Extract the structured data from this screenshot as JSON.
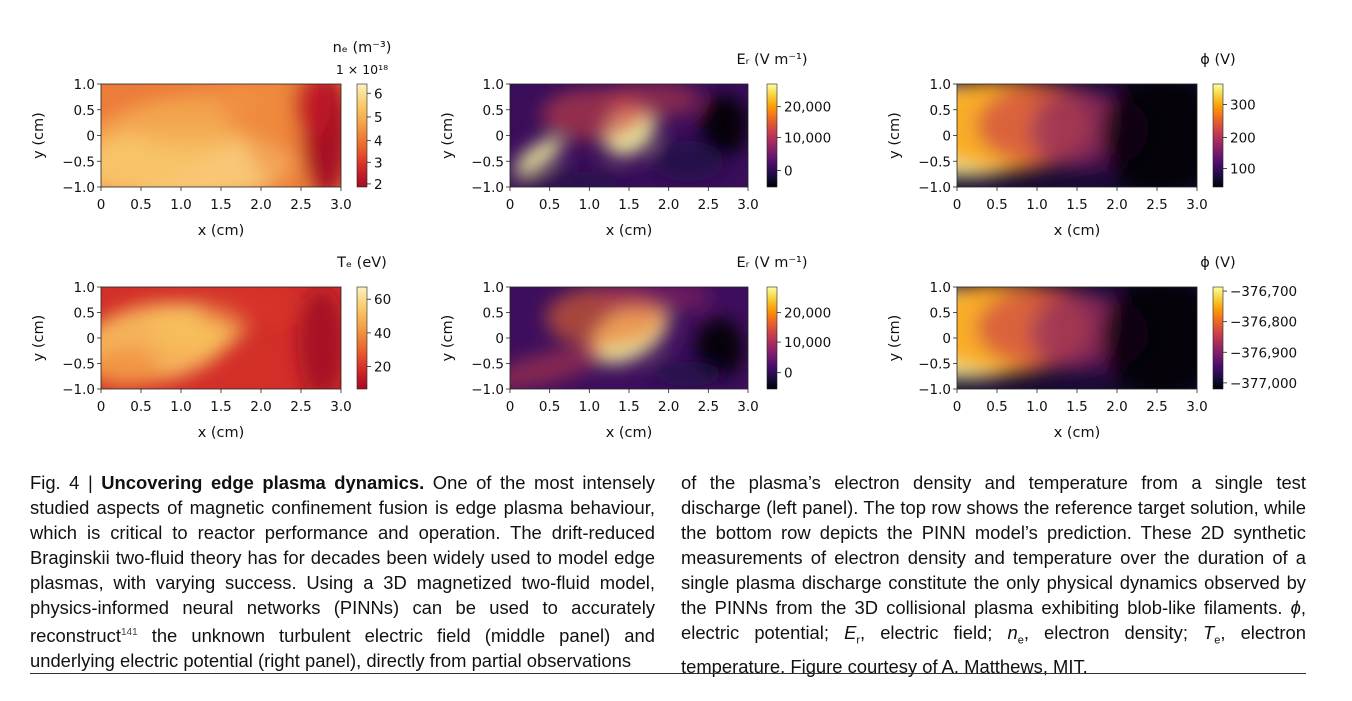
{
  "figure": {
    "x_ticks": [
      "0",
      "0.5",
      "1.0",
      "1.5",
      "2.0",
      "2.5",
      "3.0"
    ],
    "y_ticks": [
      "1.0",
      "0.5",
      "0",
      "−0.5",
      "−1.0"
    ],
    "x_label": "x (cm)",
    "y_label": "y (cm)",
    "panels": [
      {
        "id": "ne_target",
        "cmap": "lajolla",
        "field": "ne",
        "cb_title": "nₑ (m⁻³)",
        "cb_multiplier": "1 × 10¹⁸",
        "cb_ticks": [
          "6",
          "5",
          "4",
          "3",
          "2"
        ]
      },
      {
        "id": "Er_target",
        "cmap": "inferno",
        "field": "er1",
        "cb_title": "Eᵣ (V m⁻¹)",
        "cb_ticks": [
          "20,000",
          "10,000",
          "0"
        ]
      },
      {
        "id": "phi_target",
        "cmap": "inferno",
        "field": "phi",
        "cb_title": "ϕ (V)",
        "cb_ticks": [
          "300",
          "200",
          "100"
        ]
      },
      {
        "id": "Te_target",
        "cmap": "lajolla",
        "field": "te",
        "cb_title": "Tₑ (eV)",
        "cb_ticks": [
          "60",
          "40",
          "20"
        ]
      },
      {
        "id": "Er_pred",
        "cmap": "inferno",
        "field": "er2",
        "cb_title": "Eᵣ (V m⁻¹)",
        "cb_ticks": [
          "20,000",
          "10,000",
          "0"
        ]
      },
      {
        "id": "phi_pred",
        "cmap": "inferno",
        "field": "phi",
        "cb_title": "ϕ (V)",
        "cb_ticks": [
          "−376,700",
          "−376,800",
          "−376,900",
          "−377,000"
        ]
      }
    ]
  },
  "caption": {
    "fig_label": "Fig. 4 | ",
    "title": "Uncovering edge plasma dynamics.",
    "left_p1": " One of the most intensely studied aspects of magnetic confinement fusion is edge plasma behaviour, which is critical to reactor performance and operation. The drift-reduced Braginskii two-fluid theory has for decades been widely used to model edge plasmas, with varying success. Using a 3D magnetized two-fluid model, physics-informed neural networks (PINNs) can be used to accurately reconstruct",
    "ref": "141",
    "left_p2": " the unknown turbulent electric field (middle panel) and underlying electric potential (right panel), directly from partial observations",
    "right_p1": "of the plasma’s electron density and temperature from a single test discharge (left panel). The top row shows the reference target solution, while the bottom row depicts the PINN model’s prediction. These 2D synthetic measurements of electron density and temperature over the duration of a single plasma discharge constitute the only physical dynamics observed by the PINNs from the 3D collisional plasma exhibiting blob-like filaments. ",
    "phi": "ϕ",
    "t_phi": ", electric potential; ",
    "E": "E",
    "E_sub": "r",
    "t_E": ", electric field; ",
    "n": "n",
    "n_sub": "e",
    "t_n": ", electron density; ",
    "T": "T",
    "T_sub": "e",
    "t_T": ", electron temperature. Figure courtesy of A. Matthews, MIT."
  }
}
